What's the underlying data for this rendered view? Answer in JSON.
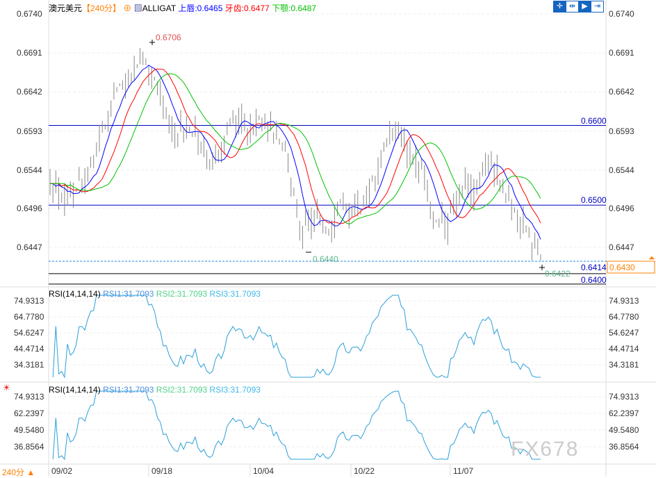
{
  "header": {
    "symbol": "澳元美元",
    "period": "【240分】",
    "indicator": "ALLIGAT",
    "upper_label": "上唇:0.6465",
    "teeth_label": "牙齿:0.6477",
    "jaw_label": "下颚:0.6487"
  },
  "toolbar": [
    {
      "icon": "crosshair-icon"
    },
    {
      "icon": "zoom-range-icon"
    },
    {
      "icon": "cursor-icon"
    },
    {
      "icon": "scroll-right-icon"
    }
  ],
  "price_axis": [
    "0.6740",
    "0.6691",
    "0.6642",
    "0.6593",
    "0.6544",
    "0.6496",
    "0.6447"
  ],
  "levels": {
    "l1": "0.6600",
    "l2": "0.6500",
    "l3": "0.6414",
    "l4": "0.6400",
    "current": "0.6430"
  },
  "annotations": {
    "high": "0.6706",
    "low1": "0.6440",
    "low2": "0.6422"
  },
  "rsi1": {
    "title": "RSI(14,14,14)",
    "v1": "RSI1:31.7093",
    "v2": "RSI2:31.7093",
    "v3": "RSI3:31.7093",
    "axis": [
      "74.9313",
      "64.7780",
      "54.6247",
      "44.4714",
      "34.3181"
    ]
  },
  "rsi2": {
    "title": "RSI(14,14,14)",
    "v1": "RSI1:31.7093",
    "v2": "RSI2:31.7093",
    "v3": "RSI3:31.7093",
    "axis": [
      "74.9313",
      "62.2397",
      "49.5480",
      "36.8564"
    ]
  },
  "xaxis": {
    "period": "240分 ▲",
    "labels": [
      "09/02",
      "09/18",
      "10/04",
      "10/22",
      "11/07"
    ]
  },
  "watermark": "FX678",
  "colors": {
    "lips": "#0000ff",
    "teeth": "#ff0000",
    "jaw": "#00c000",
    "rsi": "#2a9fd8",
    "level": "#0000c0",
    "current": "#ff8000"
  },
  "chart_data": {
    "type": "line",
    "closes": [
      0.653,
      0.651,
      0.652,
      0.654,
      0.66,
      0.664,
      0.6665,
      0.668,
      0.666,
      0.66,
      0.659,
      0.6595,
      0.654,
      0.657,
      0.661,
      0.66,
      0.6605,
      0.659,
      0.655,
      0.646,
      0.649,
      0.647,
      0.65,
      0.649,
      0.651,
      0.656,
      0.66,
      0.657,
      0.655,
      0.649,
      0.648,
      0.653,
      0.652,
      0.656,
      0.653,
      0.649,
      0.647,
      0.643
    ],
    "ylim": [
      0.64,
      0.674
    ]
  }
}
